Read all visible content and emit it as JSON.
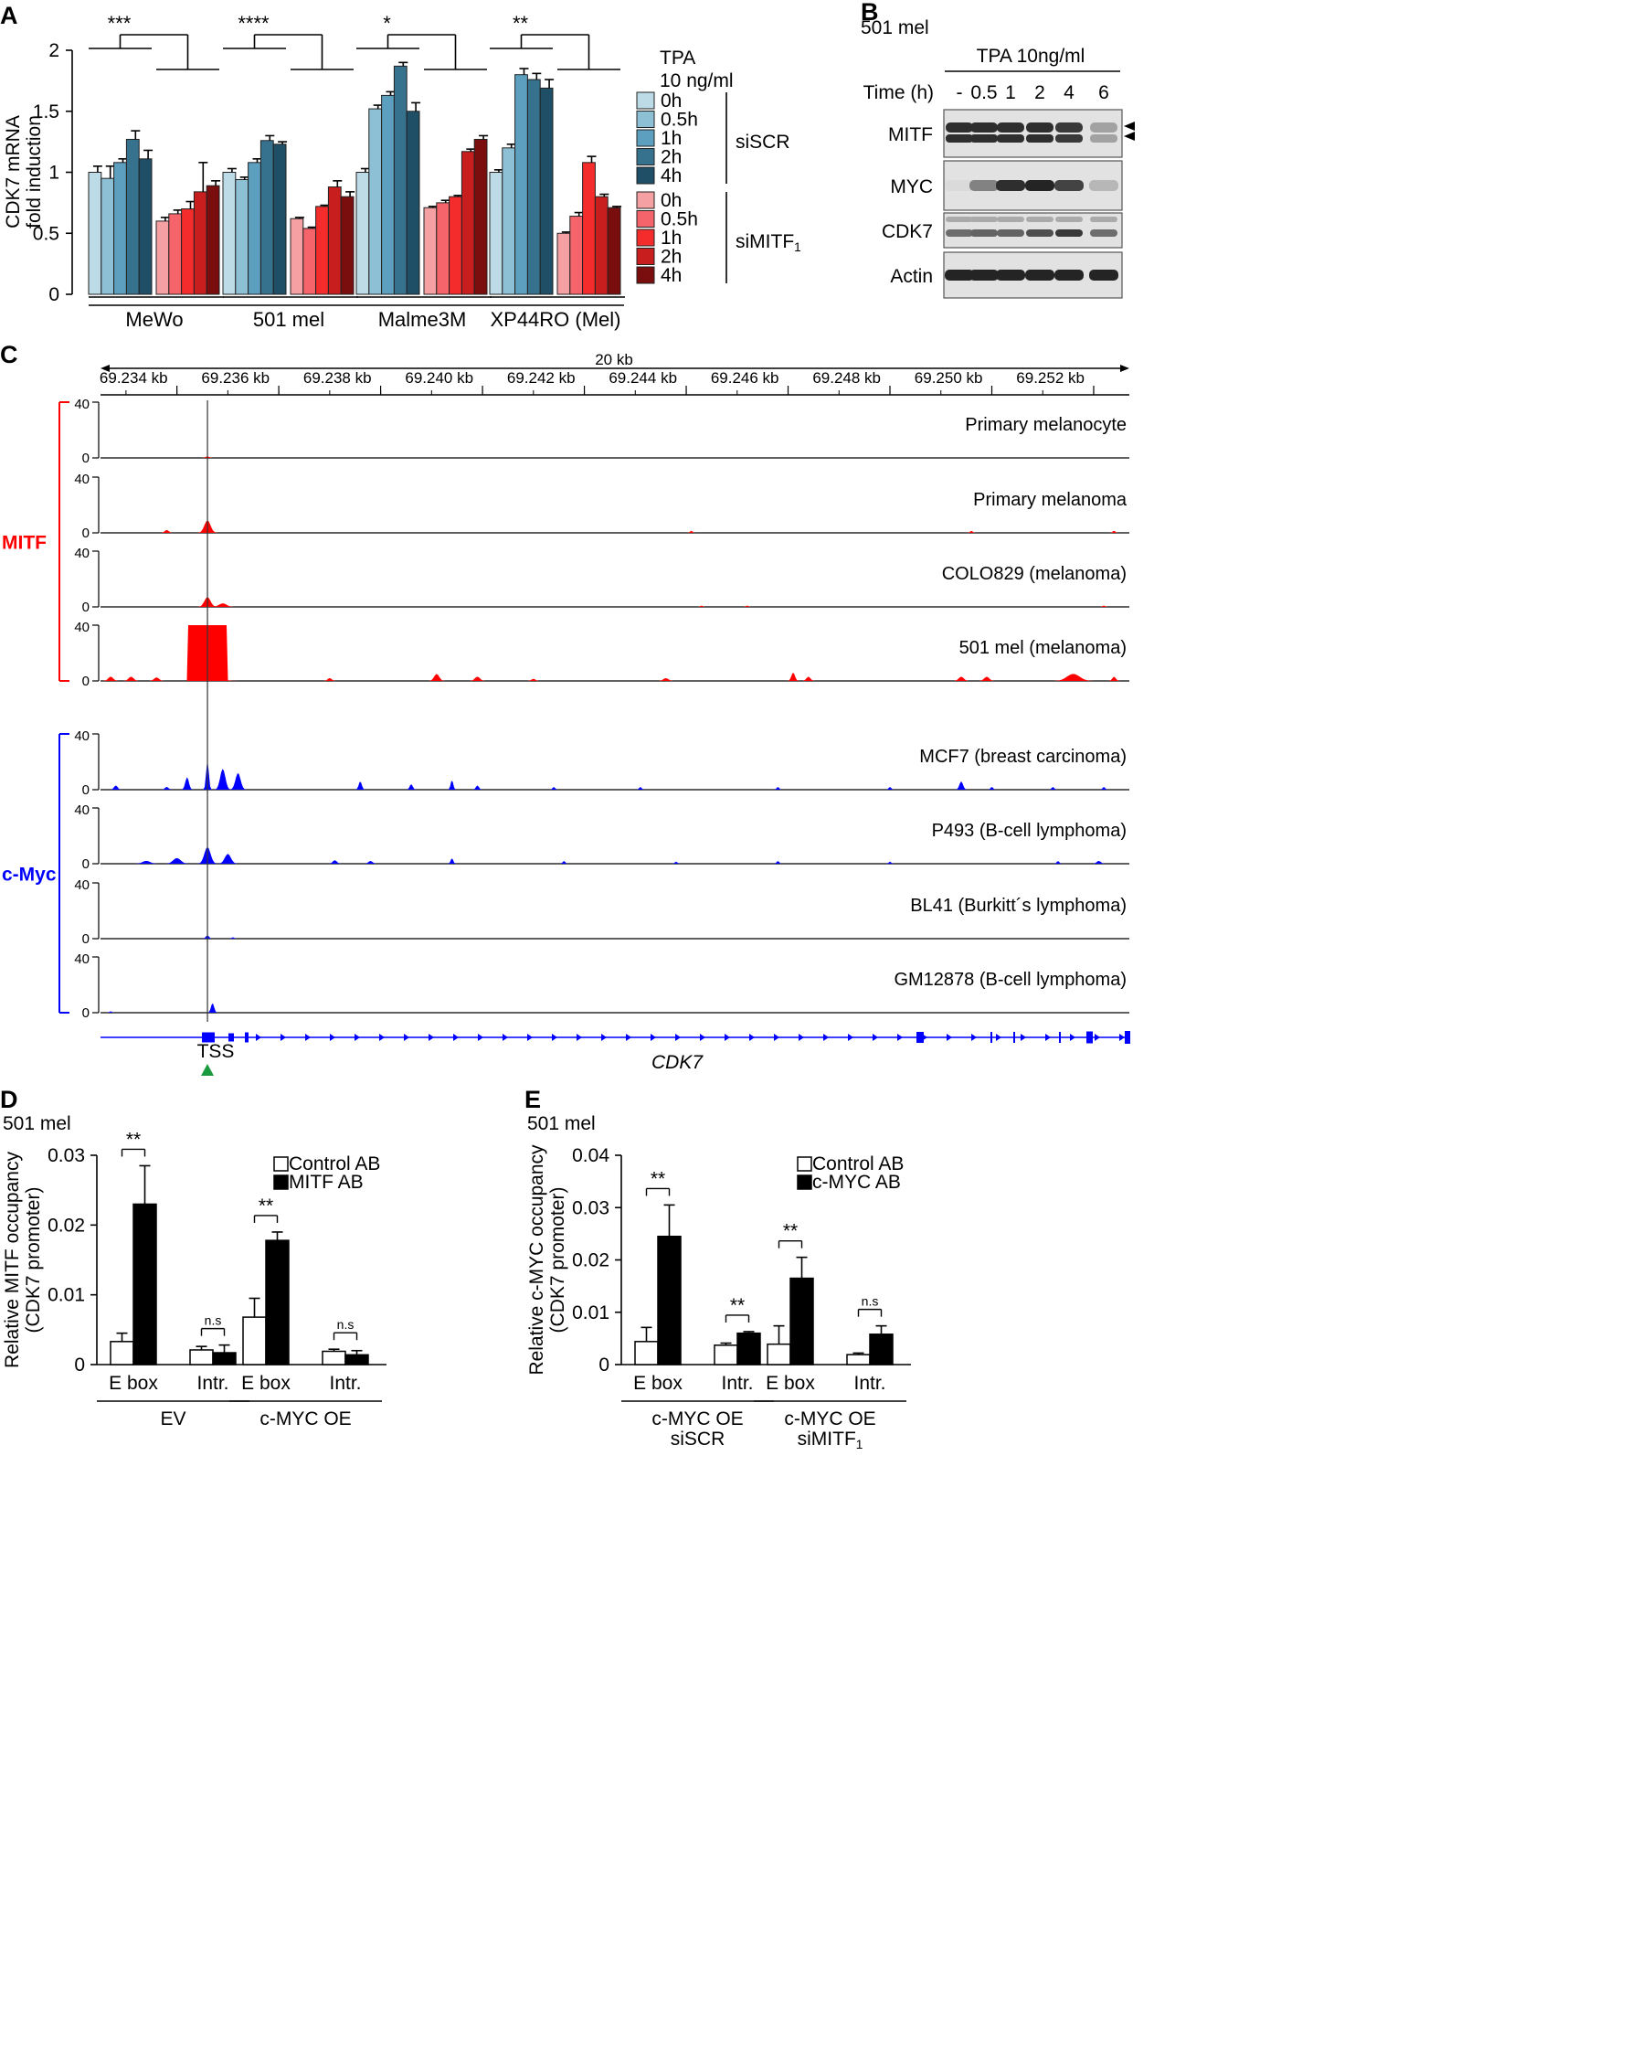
{
  "panels": {
    "A": "A",
    "B": "B",
    "C": "C",
    "D": "D",
    "E": "E"
  },
  "colors": {
    "blue": [
      "#bcdbe6",
      "#8ec0d5",
      "#5d9fbe",
      "#36718d",
      "#1f4f66"
    ],
    "red": [
      "#f5a0a3",
      "#f5646a",
      "#f52c2c",
      "#c81e1e",
      "#7a0e0e"
    ],
    "mitf": "#ff0000",
    "myc": "#0000ff",
    "gene": "#0000ff",
    "tss": "#1a9a3f"
  },
  "chart_data": [
    {
      "panel": "A",
      "type": "bar",
      "ylabel": [
        "CDK7 mRNA",
        "fold induction"
      ],
      "ylim": [
        0,
        2
      ],
      "yticks": [
        "0",
        "0.5",
        "1",
        "1.5",
        "2"
      ],
      "groups": [
        "MeWo",
        "501 mel",
        "Malme3M",
        "XP44RO (Mel)"
      ],
      "significance": [
        "***",
        "****",
        "*",
        "**"
      ],
      "time_points": [
        "0h",
        "0.5h",
        "1h",
        "2h",
        "4h"
      ],
      "series": [
        {
          "name": "siSCR",
          "values": [
            [
              1.0,
              0.95,
              1.08,
              1.27,
              1.11
            ],
            [
              1.0,
              0.94,
              1.08,
              1.26,
              1.23
            ],
            [
              1.0,
              1.52,
              1.63,
              1.87,
              1.5
            ],
            [
              1.0,
              1.2,
              1.8,
              1.76,
              1.69
            ]
          ],
          "errors": [
            [
              0.05,
              0.1,
              0.03,
              0.07,
              0.07
            ],
            [
              0.03,
              0.02,
              0.03,
              0.04,
              0.02
            ],
            [
              0.03,
              0.03,
              0.03,
              0.03,
              0.07
            ],
            [
              0.02,
              0.03,
              0.05,
              0.05,
              0.07
            ]
          ]
        },
        {
          "name": "siMITF₁",
          "values": [
            [
              0.6,
              0.66,
              0.7,
              0.84,
              0.89
            ],
            [
              0.62,
              0.54,
              0.72,
              0.88,
              0.8
            ],
            [
              0.71,
              0.75,
              0.8,
              1.17,
              1.27
            ],
            [
              0.5,
              0.64,
              1.08,
              0.8,
              0.71
            ]
          ],
          "errors": [
            [
              0.03,
              0.03,
              0.06,
              0.24,
              0.04
            ],
            [
              0.01,
              0.01,
              0.01,
              0.05,
              0.04
            ],
            [
              0.01,
              0.02,
              0.01,
              0.02,
              0.03
            ],
            [
              0.01,
              0.03,
              0.05,
              0.02,
              0.01
            ]
          ]
        }
      ],
      "legend_title": [
        "TPA",
        "10 ng/ml"
      ],
      "legend_groups": [
        "siSCR",
        "siMITF₁"
      ]
    },
    {
      "panel": "B",
      "type": "blot",
      "cell_line": "501 mel",
      "treatment": "TPA 10ng/ml",
      "time_label": "Time (h)",
      "lanes": [
        "-",
        "0.5",
        "1",
        "2",
        "4",
        "6"
      ],
      "rows": [
        {
          "name": "MITF",
          "intensity": [
            0.9,
            0.9,
            0.9,
            0.9,
            0.85,
            0.35
          ]
        },
        {
          "name": "MYC",
          "intensity": [
            0.08,
            0.5,
            0.9,
            0.95,
            0.8,
            0.25
          ]
        },
        {
          "name": "CDK7",
          "intensity": [
            0.6,
            0.65,
            0.65,
            0.75,
            0.85,
            0.6
          ]
        },
        {
          "name": "Actin",
          "intensity": [
            0.95,
            0.95,
            0.95,
            0.95,
            0.95,
            0.95
          ]
        }
      ]
    },
    {
      "panel": "C",
      "type": "area",
      "scale_label": "20 kb",
      "x_ticks": [
        "69.234 kb",
        "69.236 kb",
        "69.238 kb",
        "69.240 kb",
        "69.242 kb",
        "69.244 kb",
        "69.246 kb",
        "69.248 kb",
        "69.250 kb",
        "69.252 kb"
      ],
      "x_range_kb": [
        69.2325,
        69.2527
      ],
      "ymax": 40,
      "tss_kb": 69.2346,
      "groups": [
        {
          "label": "MITF",
          "tracks": [
            0,
            1,
            2,
            3
          ]
        },
        {
          "label": "c-Myc",
          "tracks": [
            4,
            5,
            6,
            7
          ]
        }
      ],
      "tracks": [
        {
          "name": "Primary melanocyte",
          "peaks": [
            [
              69.2346,
              1,
              0.08
            ]
          ]
        },
        {
          "name": "Primary melanoma",
          "peaks": [
            [
              69.2346,
              9,
              0.12
            ],
            [
              69.2338,
              2,
              0.08
            ],
            [
              69.2441,
              1.5,
              0.05
            ],
            [
              69.2496,
              1.5,
              0.05
            ],
            [
              69.2524,
              1.5,
              0.05
            ]
          ]
        },
        {
          "name": "COLO829 (melanoma)",
          "peaks": [
            [
              69.2346,
              7,
              0.12
            ],
            [
              69.2349,
              2.5,
              0.15
            ],
            [
              69.2443,
              1,
              0.05
            ],
            [
              69.2452,
              1,
              0.05
            ],
            [
              69.2522,
              1,
              0.05
            ]
          ]
        },
        {
          "name": "501 mel (melanoma)",
          "peaks": [
            [
              69.2344,
              40,
              0.09
            ],
            [
              69.2347,
              36,
              0.08
            ],
            [
              69.2327,
              3,
              0.1
            ],
            [
              69.2331,
              3,
              0.1
            ],
            [
              69.2336,
              2.5,
              0.1
            ],
            [
              69.2347,
              4,
              0.3
            ],
            [
              69.2391,
              5,
              0.1
            ],
            [
              69.2399,
              3,
              0.1
            ],
            [
              69.2436,
              2,
              0.1
            ],
            [
              69.2461,
              6,
              0.07
            ],
            [
              69.2464,
              3,
              0.08
            ],
            [
              69.2494,
              3,
              0.1
            ],
            [
              69.2499,
              3,
              0.1
            ],
            [
              69.2516,
              5,
              0.25
            ],
            [
              69.2524,
              3,
              0.07
            ],
            [
              69.237,
              2,
              0.08
            ],
            [
              69.241,
              1.5,
              0.08
            ]
          ]
        },
        {
          "name": "MCF7 (breast carcinoma)",
          "peaks": [
            [
              69.2346,
              22,
              0.05
            ],
            [
              69.2349,
              15,
              0.1
            ],
            [
              69.2352,
              12,
              0.1
            ],
            [
              69.2342,
              9,
              0.07
            ],
            [
              69.2328,
              3,
              0.07
            ],
            [
              69.2338,
              2,
              0.07
            ],
            [
              69.2376,
              6,
              0.06
            ],
            [
              69.2386,
              4,
              0.06
            ],
            [
              69.2394,
              7,
              0.05
            ],
            [
              69.2399,
              3,
              0.06
            ],
            [
              69.2414,
              2,
              0.05
            ],
            [
              69.2431,
              2,
              0.05
            ],
            [
              69.2458,
              2,
              0.05
            ],
            [
              69.248,
              2,
              0.05
            ],
            [
              69.2494,
              6,
              0.07
            ],
            [
              69.25,
              2,
              0.05
            ],
            [
              69.2512,
              2,
              0.05
            ],
            [
              69.2522,
              2,
              0.05
            ]
          ]
        },
        {
          "name": "P493 (B-cell lymphoma)",
          "peaks": [
            [
              69.2346,
              12,
              0.12
            ],
            [
              69.235,
              7,
              0.12
            ],
            [
              69.234,
              4,
              0.15
            ],
            [
              69.2334,
              2,
              0.15
            ],
            [
              69.2371,
              2.5,
              0.08
            ],
            [
              69.2378,
              2,
              0.08
            ],
            [
              69.2394,
              4,
              0.05
            ],
            [
              69.2416,
              2,
              0.05
            ],
            [
              69.2438,
              1.5,
              0.05
            ],
            [
              69.2458,
              2,
              0.05
            ],
            [
              69.248,
              1.5,
              0.05
            ],
            [
              69.2513,
              2,
              0.05
            ],
            [
              69.2521,
              2,
              0.08
            ]
          ]
        },
        {
          "name": "BL41 (Burkitt´s lymphoma)",
          "peaks": [
            [
              69.2346,
              2.5,
              0.06
            ],
            [
              69.2351,
              1,
              0.05
            ]
          ]
        },
        {
          "name": "GM12878 (B-cell lymphoma)",
          "peaks": [
            [
              69.2347,
              7,
              0.06
            ],
            [
              69.2327,
              1,
              0.05
            ]
          ]
        }
      ],
      "gene_label": "CDK7",
      "tss_label": "TSS"
    },
    {
      "panel": "D",
      "type": "bar",
      "cell_line": "501 mel",
      "ylabel": [
        "Relative MITF occupancy",
        "(CDK7 promoter)"
      ],
      "ylim": [
        0,
        0.03
      ],
      "yticks": [
        "0",
        "0.01",
        "0.02",
        "0.03"
      ],
      "legend": [
        "Control AB",
        "MITF AB"
      ],
      "categories": [
        "E box",
        "Intr.",
        "E box",
        "Intr."
      ],
      "groups": [
        {
          "label": [
            "EV"
          ],
          "span": [
            0,
            1
          ]
        },
        {
          "label": [
            "c-MYC OE"
          ],
          "span": [
            2,
            3
          ]
        }
      ],
      "series": [
        {
          "name": "Control AB",
          "values": [
            0.0033,
            0.0021,
            0.0068,
            0.0019
          ],
          "errors": [
            0.0012,
            0.0005,
            0.0027,
            0.0003
          ]
        },
        {
          "name": "MITF AB",
          "values": [
            0.023,
            0.0017,
            0.0178,
            0.0014
          ],
          "errors": [
            0.0055,
            0.0011,
            0.0012,
            0.0006
          ]
        }
      ],
      "significance": [
        "**",
        "n.s",
        "**",
        "n.s"
      ]
    },
    {
      "panel": "E",
      "type": "bar",
      "cell_line": "501 mel",
      "ylabel": [
        "Relative c-MYC occupancy",
        "(CDK7 promoter)"
      ],
      "ylim": [
        0,
        0.04
      ],
      "yticks": [
        "0",
        "0.01",
        "0.02",
        "0.03",
        "0.04"
      ],
      "legend": [
        "Control AB",
        "c-MYC AB"
      ],
      "categories": [
        "E box",
        "Intr.",
        "E box",
        "Intr."
      ],
      "groups": [
        {
          "label": [
            "c-MYC OE",
            "siSCR"
          ],
          "span": [
            0,
            1
          ]
        },
        {
          "label": [
            "c-MYC OE",
            "siMITF₁"
          ],
          "span": [
            2,
            3
          ]
        }
      ],
      "series": [
        {
          "name": "Control AB",
          "values": [
            0.0044,
            0.0037,
            0.0039,
            0.0019
          ],
          "errors": [
            0.0027,
            0.0004,
            0.0035,
            0.0003
          ]
        },
        {
          "name": "c-MYC AB",
          "values": [
            0.0245,
            0.006,
            0.0165,
            0.0058
          ],
          "errors": [
            0.006,
            0.0003,
            0.004,
            0.0016
          ]
        }
      ],
      "significance": [
        "**",
        "**",
        "**",
        "n.s"
      ]
    }
  ]
}
